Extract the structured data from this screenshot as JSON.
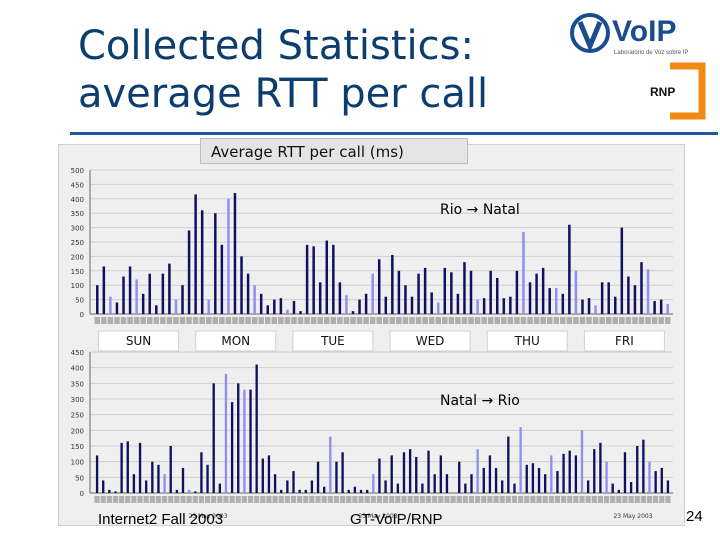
{
  "slide": {
    "title": "Collected Statistics:\naverage RTT per call",
    "chart_header": "Average RTT per call (ms)",
    "footer_left": "Internet2 Fall 2003",
    "footer_center": "GT-VoIP/RNP",
    "page_number": "24",
    "logo_voip_text": "VoIP",
    "logo_voip_subtitle": "Laboratório de Voz sobre IP",
    "logo_rnp_text": "RNP",
    "colors": {
      "title": "#0b3e6f",
      "rule": "#1e5aa0",
      "bar_dark": "#101060",
      "bar_light": "#8f8ff0"
    }
  },
  "chart_data": [
    {
      "type": "bar",
      "annotation": "Rio → Natal",
      "day_labels": [
        "SUN",
        "MON",
        "TUE",
        "WED",
        "THU",
        "FRI"
      ],
      "ylim": [
        0,
        500
      ],
      "yticks": [
        0,
        50,
        100,
        150,
        200,
        250,
        300,
        350,
        400,
        450,
        500
      ],
      "values": [
        100,
        165,
        60,
        40,
        130,
        165,
        120,
        70,
        140,
        30,
        140,
        175,
        50,
        100,
        290,
        415,
        360,
        50,
        350,
        240,
        400,
        420,
        200,
        140,
        100,
        70,
        30,
        50,
        55,
        15,
        45,
        10,
        240,
        235,
        110,
        255,
        240,
        110,
        65,
        10,
        50,
        70,
        140,
        190,
        60,
        205,
        150,
        100,
        60,
        140,
        160,
        75,
        40,
        160,
        145,
        70,
        180,
        150,
        50,
        55,
        150,
        125,
        55,
        60,
        150,
        285,
        110,
        140,
        160,
        90,
        90,
        70,
        310,
        150,
        50,
        55,
        30,
        110,
        110,
        60,
        300,
        130,
        100,
        180,
        155,
        45,
        50,
        35
      ],
      "highlight": [
        2,
        6,
        12,
        17,
        20,
        24,
        29,
        38,
        42,
        52,
        58,
        65,
        70,
        73,
        76,
        84,
        87
      ]
    },
    {
      "type": "bar",
      "annotation": "Natal → Rio",
      "ylim": [
        0,
        450
      ],
      "yticks": [
        0,
        50,
        100,
        150,
        200,
        250,
        300,
        350,
        400,
        450
      ],
      "x_date_label": "23 May 2003",
      "values": [
        120,
        40,
        10,
        5,
        160,
        165,
        60,
        160,
        40,
        100,
        90,
        60,
        150,
        10,
        80,
        10,
        5,
        130,
        90,
        350,
        30,
        380,
        290,
        350,
        330,
        330,
        410,
        110,
        120,
        60,
        10,
        40,
        70,
        10,
        10,
        40,
        100,
        20,
        180,
        100,
        130,
        10,
        20,
        10,
        10,
        60,
        110,
        40,
        120,
        30,
        130,
        140,
        115,
        30,
        135,
        60,
        120,
        60,
        0,
        100,
        30,
        60,
        140,
        80,
        120,
        80,
        40,
        180,
        30,
        210,
        90,
        95,
        80,
        60,
        120,
        70,
        125,
        135,
        120,
        200,
        40,
        140,
        160,
        100,
        30,
        10,
        130,
        35,
        150,
        170,
        100,
        70,
        80,
        40
      ],
      "highlight": [
        11,
        15,
        21,
        24,
        38,
        45,
        62,
        69,
        74,
        79,
        83,
        90
      ]
    }
  ]
}
